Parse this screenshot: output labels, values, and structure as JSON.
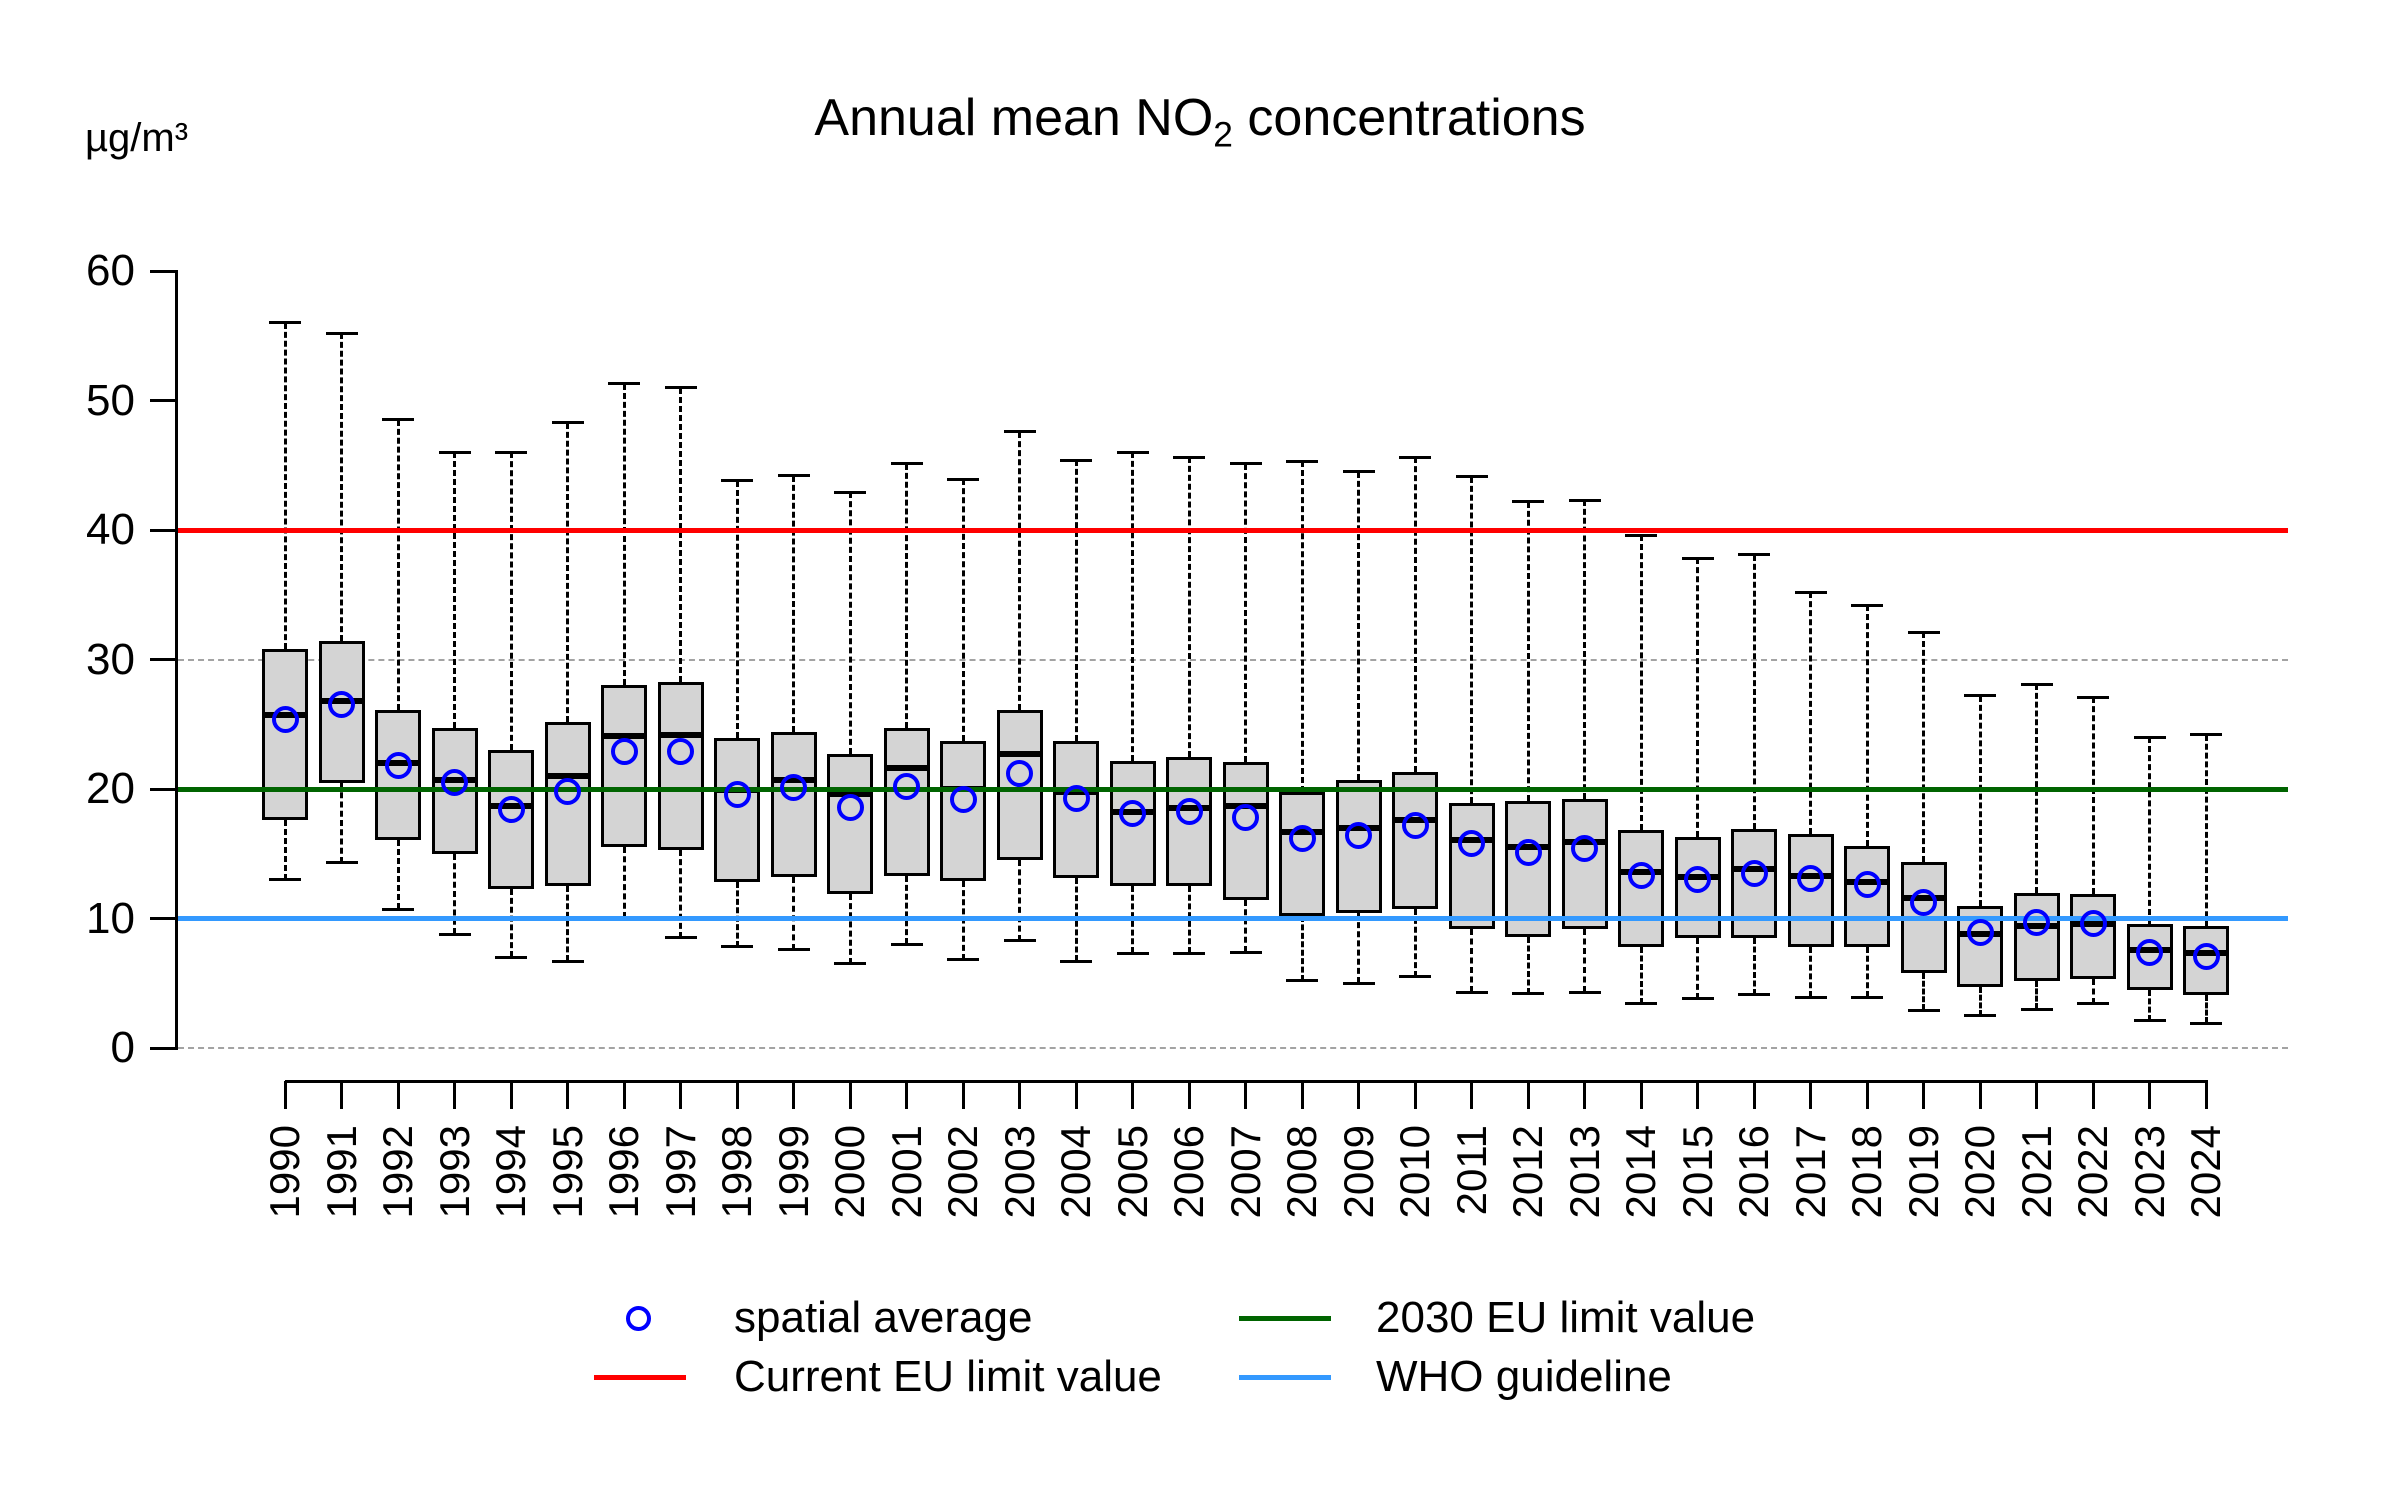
{
  "title": {
    "prefix": "Annual mean NO",
    "subscript": "2",
    "suffix": " concentrations"
  },
  "y_axis": {
    "unit_label": "µg/m³",
    "tick_values": [
      0,
      10,
      20,
      30,
      40,
      50,
      60
    ],
    "range": [
      0,
      60
    ],
    "dashed_gridlines_at": [
      0,
      30
    ]
  },
  "x_axis": {
    "tick_labels": [
      "1990",
      "1991",
      "1992",
      "1993",
      "1994",
      "1995",
      "1996",
      "1997",
      "1998",
      "1999",
      "2000",
      "2001",
      "2002",
      "2003",
      "2004",
      "2005",
      "2006",
      "2007",
      "2008",
      "2009",
      "2010",
      "2011",
      "2012",
      "2013",
      "2014",
      "2015",
      "2016",
      "2017",
      "2018",
      "2019",
      "2020",
      "2021",
      "2022",
      "2023",
      "2024"
    ]
  },
  "reference_lines": [
    {
      "id": "current-eu-limit",
      "label": "Current EU limit value",
      "value": 40,
      "color": "#ff0000"
    },
    {
      "id": "eu-2030-limit",
      "label": "2030 EU limit value",
      "value": 20,
      "color": "#006400"
    },
    {
      "id": "who-guideline",
      "label": "WHO guideline",
      "value": 10,
      "color": "#3399ff"
    }
  ],
  "legend": {
    "items": [
      {
        "id": "spatial-average",
        "label": "spatial average",
        "marker": "circle",
        "color": "#0000ff"
      },
      {
        "id": "current-eu-limit-value",
        "label": "Current EU limit value",
        "marker": "line",
        "color": "#ff0000"
      },
      {
        "id": "eu-2030-limit-value",
        "label": "2030 EU limit value",
        "marker": "line",
        "color": "#006400"
      },
      {
        "id": "who-guideline",
        "label": "WHO guideline",
        "marker": "line",
        "color": "#3399ff"
      }
    ]
  },
  "chart_data": {
    "type": "boxplot",
    "title": "Annual mean NO2 concentrations",
    "ylabel": "µg/m³",
    "ylim": [
      0,
      60
    ],
    "grid": "dashed lines at y=0 and y=30",
    "legend_position": "bottom",
    "categories": [
      1990,
      1991,
      1992,
      1993,
      1994,
      1995,
      1996,
      1997,
      1998,
      1999,
      2000,
      2001,
      2002,
      2003,
      2004,
      2005,
      2006,
      2007,
      2008,
      2009,
      2010,
      2011,
      2012,
      2013,
      2014,
      2015,
      2016,
      2017,
      2018,
      2019,
      2020,
      2021,
      2022,
      2023,
      2024
    ],
    "boxes": [
      {
        "year": 1990,
        "low": 13.0,
        "q1": 17.6,
        "median": 25.7,
        "q3": 30.8,
        "high": 56.0,
        "mean": 25.4
      },
      {
        "year": 1991,
        "low": 14.3,
        "q1": 20.5,
        "median": 26.8,
        "q3": 31.4,
        "high": 55.2,
        "mean": 26.5
      },
      {
        "year": 1992,
        "low": 10.7,
        "q1": 16.1,
        "median": 22.0,
        "q3": 26.1,
        "high": 48.5,
        "mean": 21.8
      },
      {
        "year": 1993,
        "low": 8.8,
        "q1": 15.0,
        "median": 20.7,
        "q3": 24.7,
        "high": 46.0,
        "mean": 20.5
      },
      {
        "year": 1994,
        "low": 7.0,
        "q1": 12.3,
        "median": 18.7,
        "q3": 23.0,
        "high": 46.0,
        "mean": 18.4
      },
      {
        "year": 1995,
        "low": 6.7,
        "q1": 12.5,
        "median": 21.0,
        "q3": 25.2,
        "high": 48.3,
        "mean": 19.8
      },
      {
        "year": 1996,
        "low": 10.0,
        "q1": 15.5,
        "median": 24.1,
        "q3": 28.0,
        "high": 51.3,
        "mean": 22.9
      },
      {
        "year": 1997,
        "low": 8.5,
        "q1": 15.3,
        "median": 24.2,
        "q3": 28.3,
        "high": 51.0,
        "mean": 22.9
      },
      {
        "year": 1998,
        "low": 7.8,
        "q1": 12.8,
        "median": 19.9,
        "q3": 23.9,
        "high": 43.8,
        "mean": 19.6
      },
      {
        "year": 1999,
        "low": 7.6,
        "q1": 13.2,
        "median": 20.7,
        "q3": 24.4,
        "high": 44.2,
        "mean": 20.1
      },
      {
        "year": 2000,
        "low": 6.5,
        "q1": 11.9,
        "median": 19.6,
        "q3": 22.7,
        "high": 42.9,
        "mean": 18.6
      },
      {
        "year": 2001,
        "low": 8.0,
        "q1": 13.3,
        "median": 21.6,
        "q3": 24.7,
        "high": 45.1,
        "mean": 20.2
      },
      {
        "year": 2002,
        "low": 6.8,
        "q1": 12.9,
        "median": 20.0,
        "q3": 23.7,
        "high": 43.9,
        "mean": 19.2
      },
      {
        "year": 2003,
        "low": 8.3,
        "q1": 14.5,
        "median": 22.7,
        "q3": 26.1,
        "high": 47.6,
        "mean": 21.2
      },
      {
        "year": 2004,
        "low": 6.7,
        "q1": 13.1,
        "median": 19.8,
        "q3": 23.7,
        "high": 45.4,
        "mean": 19.3
      },
      {
        "year": 2005,
        "low": 7.3,
        "q1": 12.5,
        "median": 18.2,
        "q3": 22.2,
        "high": 46.0,
        "mean": 18.1
      },
      {
        "year": 2006,
        "low": 7.3,
        "q1": 12.5,
        "median": 18.5,
        "q3": 22.5,
        "high": 45.6,
        "mean": 18.3
      },
      {
        "year": 2007,
        "low": 7.4,
        "q1": 11.4,
        "median": 18.7,
        "q3": 22.1,
        "high": 45.1,
        "mean": 17.8
      },
      {
        "year": 2008,
        "low": 5.2,
        "q1": 10.2,
        "median": 16.7,
        "q3": 19.8,
        "high": 45.3,
        "mean": 16.2
      },
      {
        "year": 2009,
        "low": 5.0,
        "q1": 10.4,
        "median": 17.0,
        "q3": 20.7,
        "high": 44.5,
        "mean": 16.4
      },
      {
        "year": 2010,
        "low": 5.5,
        "q1": 10.7,
        "median": 17.6,
        "q3": 21.3,
        "high": 45.6,
        "mean": 17.2
      },
      {
        "year": 2011,
        "low": 4.3,
        "q1": 9.2,
        "median": 16.1,
        "q3": 18.9,
        "high": 44.1,
        "mean": 15.8
      },
      {
        "year": 2012,
        "low": 4.2,
        "q1": 8.6,
        "median": 15.5,
        "q3": 19.1,
        "high": 42.2,
        "mean": 15.1
      },
      {
        "year": 2013,
        "low": 4.3,
        "q1": 9.2,
        "median": 15.9,
        "q3": 19.2,
        "high": 42.3,
        "mean": 15.4
      },
      {
        "year": 2014,
        "low": 3.4,
        "q1": 7.8,
        "median": 13.6,
        "q3": 16.8,
        "high": 39.6,
        "mean": 13.3
      },
      {
        "year": 2015,
        "low": 3.8,
        "q1": 8.5,
        "median": 13.2,
        "q3": 16.3,
        "high": 37.8,
        "mean": 13.0
      },
      {
        "year": 2016,
        "low": 4.1,
        "q1": 8.5,
        "median": 13.8,
        "q3": 16.9,
        "high": 38.1,
        "mean": 13.5
      },
      {
        "year": 2017,
        "low": 3.9,
        "q1": 7.8,
        "median": 13.3,
        "q3": 16.5,
        "high": 35.2,
        "mean": 13.1
      },
      {
        "year": 2018,
        "low": 3.9,
        "q1": 7.8,
        "median": 12.8,
        "q3": 15.6,
        "high": 34.2,
        "mean": 12.6
      },
      {
        "year": 2019,
        "low": 2.9,
        "q1": 5.8,
        "median": 11.6,
        "q3": 14.4,
        "high": 32.1,
        "mean": 11.2
      },
      {
        "year": 2020,
        "low": 2.5,
        "q1": 4.7,
        "median": 8.8,
        "q3": 11.0,
        "high": 27.2,
        "mean": 8.9
      },
      {
        "year": 2021,
        "low": 3.0,
        "q1": 5.2,
        "median": 9.4,
        "q3": 12.0,
        "high": 28.1,
        "mean": 9.7
      },
      {
        "year": 2022,
        "low": 3.4,
        "q1": 5.3,
        "median": 9.6,
        "q3": 11.9,
        "high": 27.1,
        "mean": 9.6
      },
      {
        "year": 2023,
        "low": 2.1,
        "q1": 4.5,
        "median": 7.6,
        "q3": 9.6,
        "high": 24.0,
        "mean": 7.4
      },
      {
        "year": 2024,
        "low": 1.9,
        "q1": 4.1,
        "median": 7.3,
        "q3": 9.4,
        "high": 24.2,
        "mean": 7.1
      }
    ],
    "colors": {
      "box_fill": "#d4d4d4",
      "box_border": "#000000",
      "median": "#000000",
      "whisker": "#000000",
      "mean_marker": "#0000ff",
      "gridline": "#a3a3a3"
    }
  }
}
